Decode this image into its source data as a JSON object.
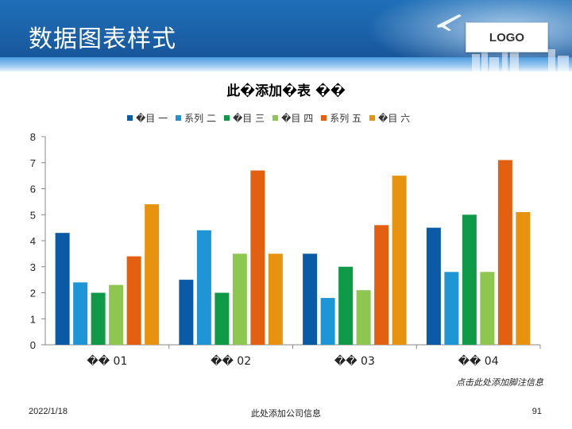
{
  "header": {
    "title": "数据图表样式",
    "logo": "LOGO"
  },
  "chart_data": {
    "type": "bar",
    "title": "此�添加�表 ��",
    "categories": [
      "�� 01",
      "�� 02",
      "�� 03",
      "�� 04"
    ],
    "series": [
      {
        "name": "�目 一",
        "color": "#0a5aa5",
        "values": [
          4.3,
          2.5,
          3.5,
          4.5
        ]
      },
      {
        "name": "系列 二",
        "color": "#1e96d6",
        "values": [
          2.4,
          4.4,
          1.8,
          2.8
        ]
      },
      {
        "name": "�目 三",
        "color": "#0f9a48",
        "values": [
          2.0,
          2.0,
          3.0,
          5.0
        ]
      },
      {
        "name": "�目 四",
        "color": "#8dc74f",
        "values": [
          2.3,
          3.5,
          2.1,
          2.8
        ]
      },
      {
        "name": "系列 五",
        "color": "#e2600f",
        "values": [
          3.4,
          6.7,
          4.6,
          7.1
        ]
      },
      {
        "name": "�目 六",
        "color": "#e8930f",
        "values": [
          5.4,
          3.5,
          6.5,
          5.1
        ]
      }
    ],
    "yticks": [
      "0",
      "1",
      "2",
      "3",
      "4",
      "5",
      "6",
      "7",
      "8"
    ],
    "ylim": [
      0,
      8
    ],
    "xlabel": "",
    "ylabel": "",
    "legend_position": "top",
    "grid": false
  },
  "footer": {
    "note": "点击此处添加脚注信息",
    "date": "2022/1/18",
    "company": "此处添加公司信息",
    "page": "91"
  }
}
